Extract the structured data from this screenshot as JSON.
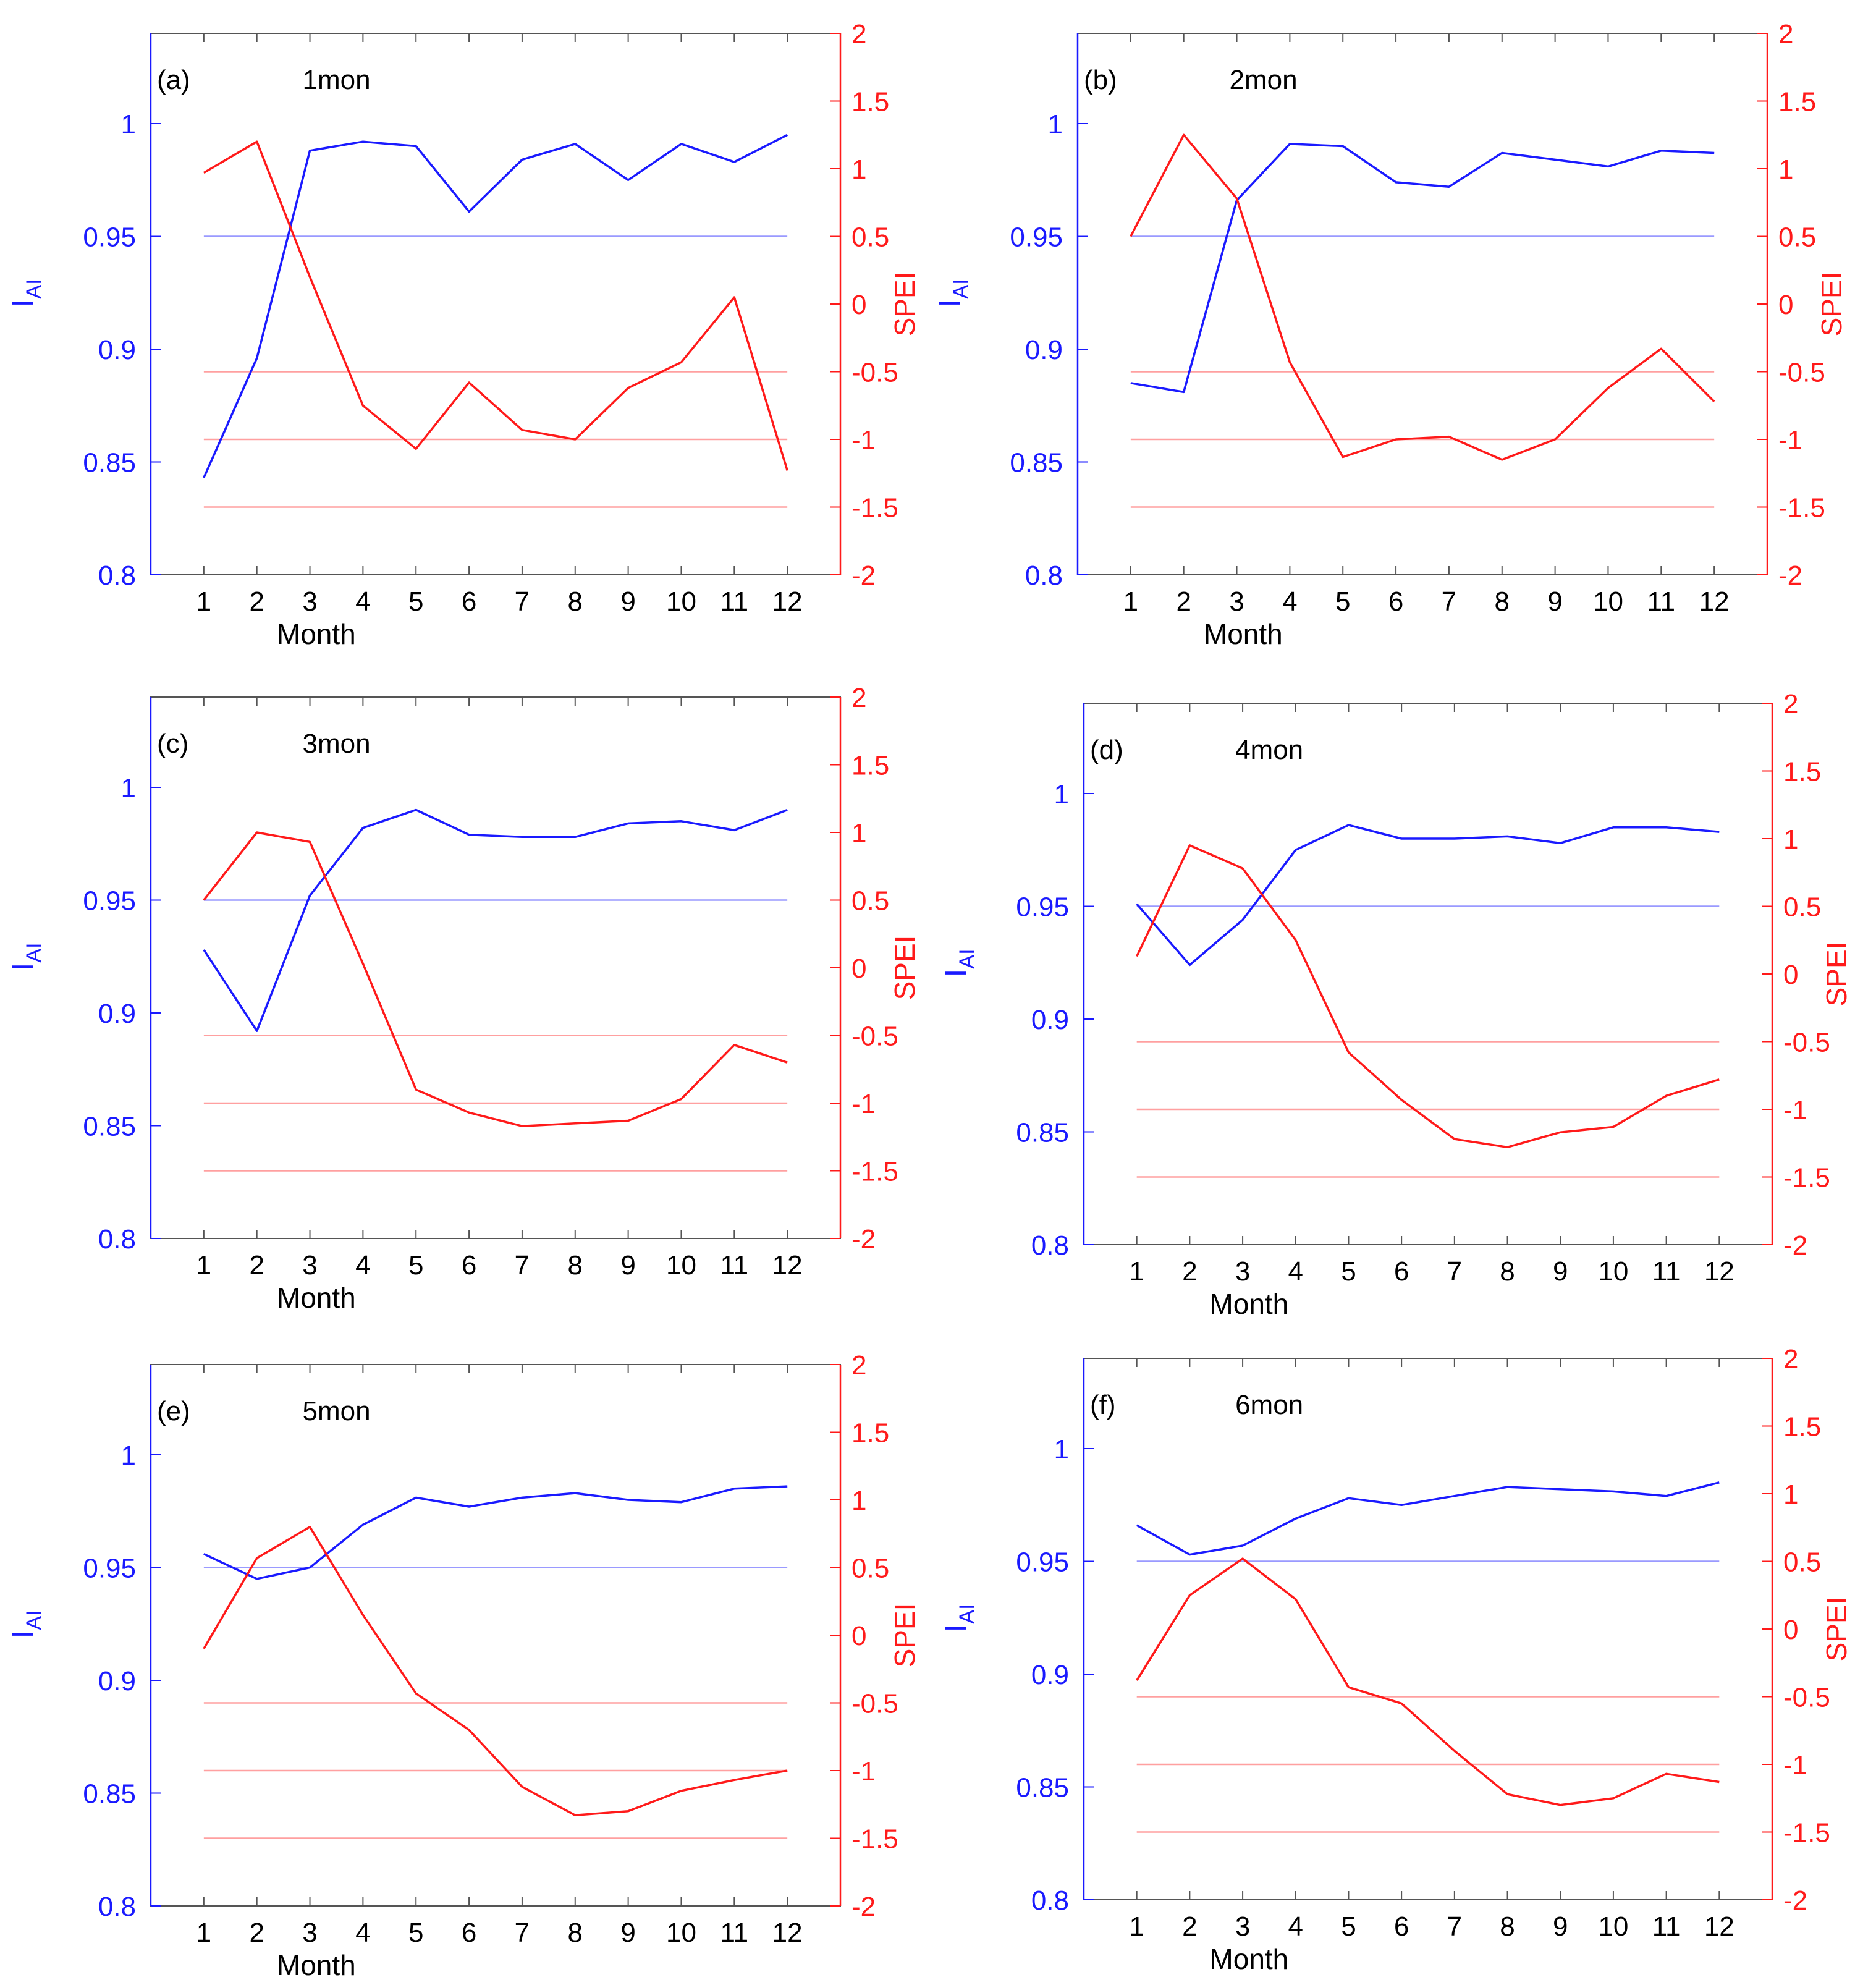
{
  "figure": {
    "x_axis_label": "Month",
    "left_axis_label_main": "I",
    "left_axis_label_sub": "AI",
    "right_axis_label": "SPEI",
    "colors": {
      "iai_line": "#1a1aff",
      "spei_line": "#ff1a1a",
      "iai_ref": "#9a9aff",
      "spei_ref": "#ffa0a0",
      "left_axis": "#1a1aff",
      "right_axis": "#ff1a1a",
      "frame": "#555555",
      "text": "#000000"
    }
  },
  "chart_data": [
    {
      "type": "line",
      "panel": "(a)",
      "title": "1mon",
      "xlabel": "Month",
      "ylabel_left": "IAI",
      "ylabel_right": "SPEI",
      "x": [
        1,
        2,
        3,
        4,
        5,
        6,
        7,
        8,
        9,
        10,
        11,
        12
      ],
      "x_ticks": [
        "1",
        "2",
        "3",
        "4",
        "5",
        "6",
        "7",
        "8",
        "9",
        "10",
        "11",
        "12"
      ],
      "ylim_left": [
        0.8,
        1.04
      ],
      "yticks_left": [
        "0.8",
        "0.85",
        "0.9",
        "0.95",
        "1"
      ],
      "ylim_right": [
        -2,
        2
      ],
      "yticks_right": [
        "-2",
        "-1.5",
        "-1",
        "-0.5",
        "0",
        "0.5",
        "1",
        "1.5",
        "2"
      ],
      "series": [
        {
          "name": "IAI",
          "axis": "left",
          "values": [
            0.843,
            0.896,
            0.988,
            0.992,
            0.99,
            0.961,
            0.984,
            0.991,
            0.975,
            0.991,
            0.983,
            0.995
          ]
        },
        {
          "name": "SPEI",
          "axis": "right",
          "values": [
            0.97,
            1.2,
            0.2,
            -0.75,
            -1.07,
            -0.58,
            -0.93,
            -1.0,
            -0.62,
            -0.43,
            0.05,
            -1.23
          ]
        }
      ],
      "reference_lines": [
        {
          "axis": "left",
          "value": 0.95
        },
        {
          "axis": "right",
          "value": -0.5
        },
        {
          "axis": "right",
          "value": -1
        },
        {
          "axis": "right",
          "value": -1.5
        }
      ]
    },
    {
      "type": "line",
      "panel": "(b)",
      "title": "2mon",
      "xlabel": "Month",
      "ylabel_left": "IAI",
      "ylabel_right": "SPEI",
      "x": [
        1,
        2,
        3,
        4,
        5,
        6,
        7,
        8,
        9,
        10,
        11,
        12
      ],
      "x_ticks": [
        "1",
        "2",
        "3",
        "4",
        "5",
        "6",
        "7",
        "8",
        "9",
        "10",
        "11",
        "12"
      ],
      "ylim_left": [
        0.8,
        1.04
      ],
      "yticks_left": [
        "0.8",
        "0.85",
        "0.9",
        "0.95",
        "1"
      ],
      "ylim_right": [
        -2,
        2
      ],
      "yticks_right": [
        "-2",
        "-1.5",
        "-1",
        "-0.5",
        "0",
        "0.5",
        "1",
        "1.5",
        "2"
      ],
      "series": [
        {
          "name": "IAI",
          "axis": "left",
          "values": [
            0.885,
            0.881,
            0.966,
            0.991,
            0.99,
            0.974,
            0.972,
            0.987,
            0.984,
            0.981,
            0.988,
            0.987
          ]
        },
        {
          "name": "SPEI",
          "axis": "right",
          "values": [
            0.5,
            1.25,
            0.78,
            -0.43,
            -1.13,
            -1.0,
            -0.98,
            -1.15,
            -1.0,
            -0.62,
            -0.33,
            -0.72
          ]
        }
      ],
      "reference_lines": [
        {
          "axis": "left",
          "value": 0.95
        },
        {
          "axis": "right",
          "value": -0.5
        },
        {
          "axis": "right",
          "value": -1
        },
        {
          "axis": "right",
          "value": -1.5
        }
      ]
    },
    {
      "type": "line",
      "panel": "(c)",
      "title": "3mon",
      "xlabel": "Month",
      "ylabel_left": "IAI",
      "ylabel_right": "SPEI",
      "x": [
        1,
        2,
        3,
        4,
        5,
        6,
        7,
        8,
        9,
        10,
        11,
        12
      ],
      "x_ticks": [
        "1",
        "2",
        "3",
        "4",
        "5",
        "6",
        "7",
        "8",
        "9",
        "10",
        "11",
        "12"
      ],
      "ylim_left": [
        0.8,
        1.04
      ],
      "yticks_left": [
        "0.8",
        "0.85",
        "0.9",
        "0.95",
        "1"
      ],
      "ylim_right": [
        -2,
        2
      ],
      "yticks_right": [
        "-2",
        "-1.5",
        "-1",
        "-0.5",
        "0",
        "0.5",
        "1",
        "1.5",
        "2"
      ],
      "series": [
        {
          "name": "IAI",
          "axis": "left",
          "values": [
            0.928,
            0.892,
            0.952,
            0.982,
            0.99,
            0.979,
            0.978,
            0.978,
            0.984,
            0.985,
            0.981,
            0.99
          ]
        },
        {
          "name": "SPEI",
          "axis": "right",
          "values": [
            0.5,
            1.0,
            0.93,
            0.03,
            -0.9,
            -1.07,
            -1.17,
            -1.15,
            -1.13,
            -0.97,
            -0.57,
            -0.7
          ]
        }
      ],
      "reference_lines": [
        {
          "axis": "left",
          "value": 0.95
        },
        {
          "axis": "right",
          "value": -0.5
        },
        {
          "axis": "right",
          "value": -1
        },
        {
          "axis": "right",
          "value": -1.5
        }
      ]
    },
    {
      "type": "line",
      "panel": "(d)",
      "title": "4mon",
      "xlabel": "Month",
      "ylabel_left": "IAI",
      "ylabel_right": "SPEI",
      "x": [
        1,
        2,
        3,
        4,
        5,
        6,
        7,
        8,
        9,
        10,
        11,
        12
      ],
      "x_ticks": [
        "1",
        "2",
        "3",
        "4",
        "5",
        "6",
        "7",
        "8",
        "9",
        "10",
        "11",
        "12"
      ],
      "ylim_left": [
        0.8,
        1.04
      ],
      "yticks_left": [
        "0.8",
        "0.85",
        "0.9",
        "0.95",
        "1"
      ],
      "ylim_right": [
        -2,
        2
      ],
      "yticks_right": [
        "-2",
        "-1.5",
        "-1",
        "-0.5",
        "0",
        "0.5",
        "1",
        "1.5",
        "2"
      ],
      "series": [
        {
          "name": "IAI",
          "axis": "left",
          "values": [
            0.951,
            0.924,
            0.944,
            0.975,
            0.986,
            0.98,
            0.98,
            0.981,
            0.978,
            0.985,
            0.985,
            0.983
          ]
        },
        {
          "name": "SPEI",
          "axis": "right",
          "values": [
            0.13,
            0.95,
            0.78,
            0.25,
            -0.58,
            -0.93,
            -1.22,
            -1.28,
            -1.17,
            -1.13,
            -0.9,
            -0.78
          ]
        }
      ],
      "reference_lines": [
        {
          "axis": "left",
          "value": 0.95
        },
        {
          "axis": "right",
          "value": -0.5
        },
        {
          "axis": "right",
          "value": -1
        },
        {
          "axis": "right",
          "value": -1.5
        }
      ]
    },
    {
      "type": "line",
      "panel": "(e)",
      "title": "5mon",
      "xlabel": "Month",
      "ylabel_left": "IAI",
      "ylabel_right": "SPEI",
      "x": [
        1,
        2,
        3,
        4,
        5,
        6,
        7,
        8,
        9,
        10,
        11,
        12
      ],
      "x_ticks": [
        "1",
        "2",
        "3",
        "4",
        "5",
        "6",
        "7",
        "8",
        "9",
        "10",
        "11",
        "12"
      ],
      "ylim_left": [
        0.8,
        1.04
      ],
      "yticks_left": [
        "0.8",
        "0.85",
        "0.9",
        "0.95",
        "1"
      ],
      "ylim_right": [
        -2,
        2
      ],
      "yticks_right": [
        "-2",
        "-1.5",
        "-1",
        "-0.5",
        "0",
        "0.5",
        "1",
        "1.5",
        "2"
      ],
      "series": [
        {
          "name": "IAI",
          "axis": "left",
          "values": [
            0.956,
            0.945,
            0.95,
            0.969,
            0.981,
            0.977,
            0.981,
            0.983,
            0.98,
            0.979,
            0.985,
            0.986
          ]
        },
        {
          "name": "SPEI",
          "axis": "right",
          "values": [
            -0.1,
            0.57,
            0.8,
            0.15,
            -0.43,
            -0.7,
            -1.12,
            -1.33,
            -1.3,
            -1.15,
            -1.07,
            -1.0
          ]
        }
      ],
      "reference_lines": [
        {
          "axis": "left",
          "value": 0.95
        },
        {
          "axis": "right",
          "value": -0.5
        },
        {
          "axis": "right",
          "value": -1
        },
        {
          "axis": "right",
          "value": -1.5
        }
      ]
    },
    {
      "type": "line",
      "panel": "(f)",
      "title": "6mon",
      "xlabel": "Month",
      "ylabel_left": "IAI",
      "ylabel_right": "SPEI",
      "x": [
        1,
        2,
        3,
        4,
        5,
        6,
        7,
        8,
        9,
        10,
        11,
        12
      ],
      "x_ticks": [
        "1",
        "2",
        "3",
        "4",
        "5",
        "6",
        "7",
        "8",
        "9",
        "10",
        "11",
        "12"
      ],
      "ylim_left": [
        0.8,
        1.04
      ],
      "yticks_left": [
        "0.8",
        "0.85",
        "0.9",
        "0.95",
        "1"
      ],
      "ylim_right": [
        -2,
        2
      ],
      "yticks_right": [
        "-2",
        "-1.5",
        "-1",
        "-0.5",
        "0",
        "0.5",
        "1",
        "1.5",
        "2"
      ],
      "series": [
        {
          "name": "IAI",
          "axis": "left",
          "values": [
            0.966,
            0.953,
            0.957,
            0.969,
            0.978,
            0.975,
            0.979,
            0.983,
            0.982,
            0.981,
            0.979,
            0.985
          ]
        },
        {
          "name": "SPEI",
          "axis": "right",
          "values": [
            -0.38,
            0.25,
            0.52,
            0.22,
            -0.43,
            -0.55,
            -0.9,
            -1.22,
            -1.3,
            -1.25,
            -1.07,
            -1.13
          ]
        }
      ],
      "reference_lines": [
        {
          "axis": "left",
          "value": 0.95
        },
        {
          "axis": "right",
          "value": -0.5
        },
        {
          "axis": "right",
          "value": -1
        },
        {
          "axis": "right",
          "value": -1.5
        }
      ]
    }
  ]
}
